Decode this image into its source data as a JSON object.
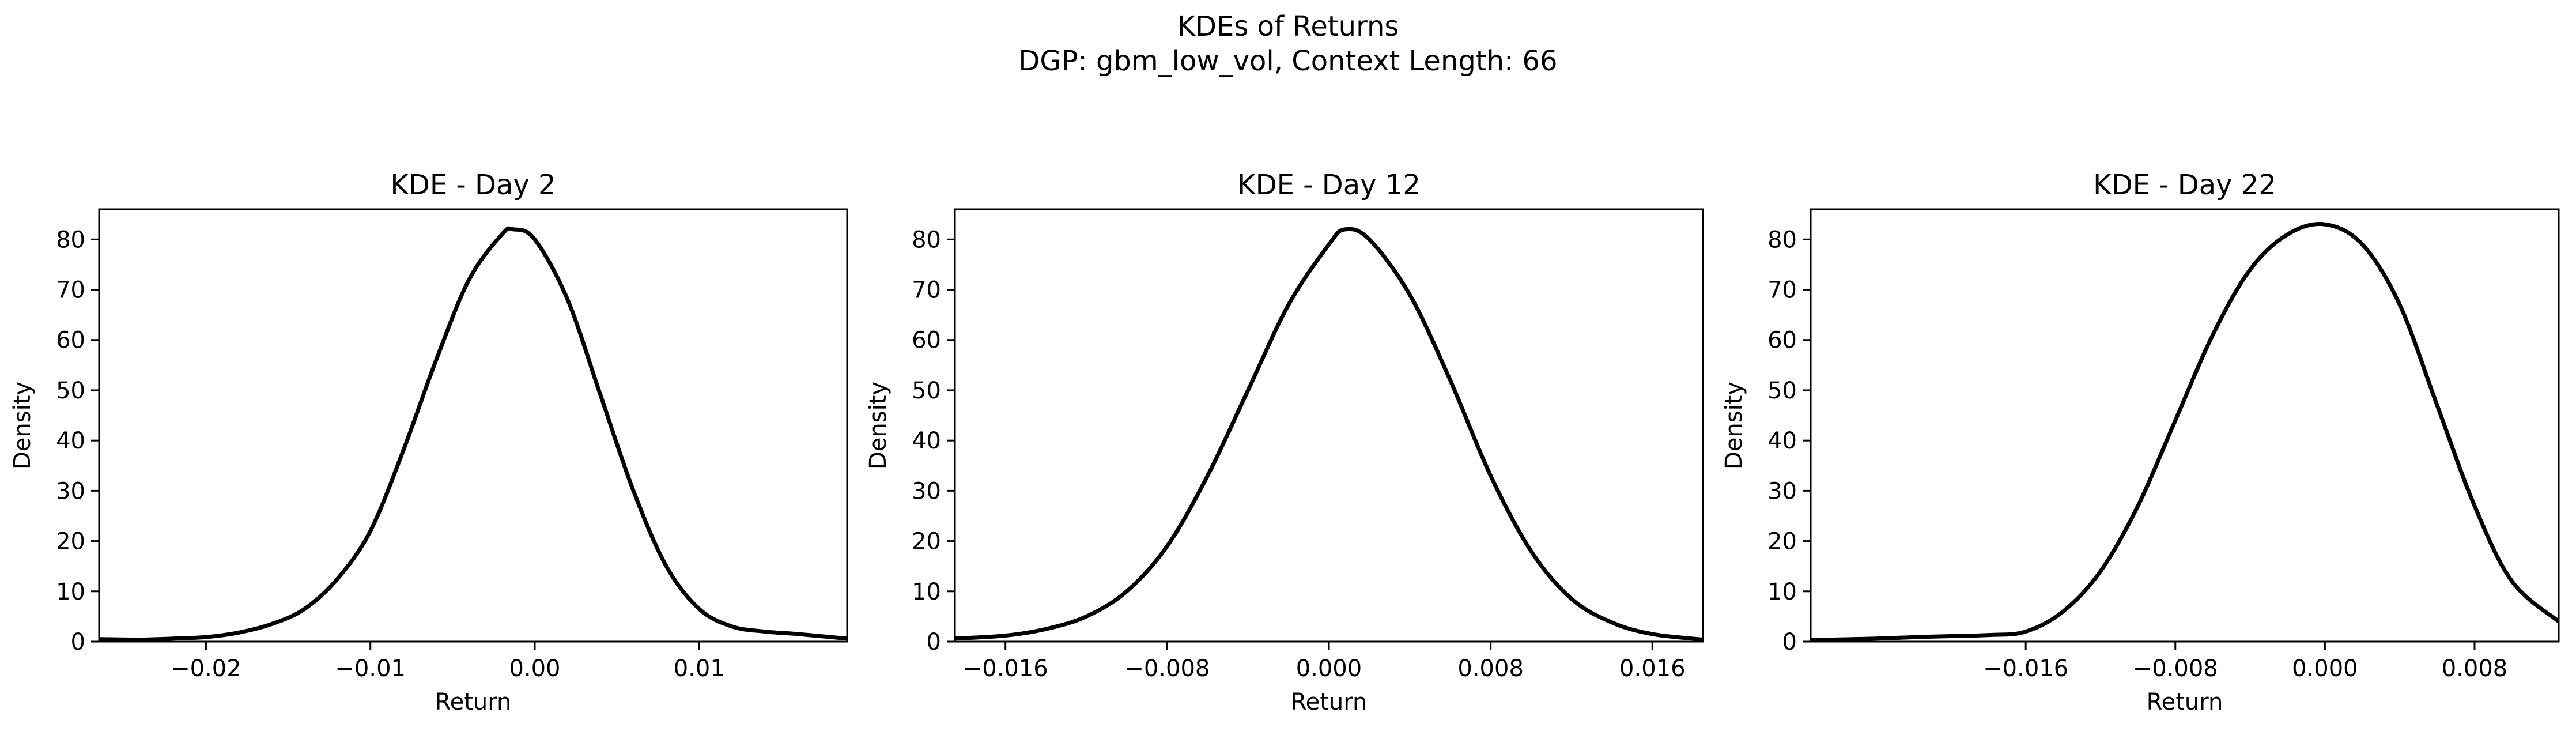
{
  "figure": {
    "title_line1": "KDEs of Returns",
    "title_line2": "DGP: gbm_low_vol, Context Length: 66"
  },
  "chart_data": [
    {
      "type": "line",
      "title": "KDE - Day 2",
      "xlabel": "Return",
      "ylabel": "Density",
      "xlim": [
        -0.0265,
        0.019
      ],
      "ylim": [
        0,
        86
      ],
      "xticks": [
        -0.02,
        -0.01,
        0.0,
        0.01
      ],
      "xtick_labels": [
        "−0.02",
        "−0.01",
        "0.00",
        "0.01"
      ],
      "yticks": [
        0,
        10,
        20,
        30,
        40,
        50,
        60,
        70,
        80
      ],
      "ytick_labels": [
        "0",
        "10",
        "20",
        "30",
        "40",
        "50",
        "60",
        "70",
        "80"
      ],
      "grid": false,
      "line_color": "#000000",
      "series": [
        {
          "x": [
            -0.0265,
            -0.024,
            -0.022,
            -0.02,
            -0.018,
            -0.016,
            -0.014,
            -0.012,
            -0.01,
            -0.008,
            -0.006,
            -0.004,
            -0.002,
            -0.0013,
            0.0,
            0.002,
            0.004,
            0.006,
            0.008,
            0.01,
            0.012,
            0.014,
            0.016,
            0.019
          ],
          "y": [
            0.5,
            0.4,
            0.6,
            0.9,
            1.8,
            3.5,
            6.5,
            12.5,
            22,
            38,
            56,
            72,
            81,
            82,
            80,
            68,
            49,
            30,
            15,
            6.5,
            3,
            2,
            1.5,
            0.6
          ]
        }
      ]
    },
    {
      "type": "line",
      "title": "KDE - Day 12",
      "xlabel": "Return",
      "ylabel": "Density",
      "xlim": [
        -0.0185,
        0.0185
      ],
      "ylim": [
        0,
        86
      ],
      "xticks": [
        -0.016,
        -0.008,
        0.0,
        0.008,
        0.016
      ],
      "xtick_labels": [
        "−0.016",
        "−0.008",
        "0.000",
        "0.008",
        "0.016"
      ],
      "yticks": [
        0,
        10,
        20,
        30,
        40,
        50,
        60,
        70,
        80
      ],
      "ytick_labels": [
        "0",
        "10",
        "20",
        "30",
        "40",
        "50",
        "60",
        "70",
        "80"
      ],
      "grid": false,
      "line_color": "#000000",
      "series": [
        {
          "x": [
            -0.0185,
            -0.016,
            -0.014,
            -0.012,
            -0.01,
            -0.008,
            -0.006,
            -0.004,
            -0.002,
            0.0,
            0.0008,
            0.002,
            0.004,
            0.006,
            0.008,
            0.01,
            0.012,
            0.014,
            0.016,
            0.0185
          ],
          "y": [
            0.6,
            1.2,
            2.5,
            5,
            10,
            19,
            33,
            50,
            67,
            79,
            82,
            80,
            69,
            52,
            33,
            18,
            8.5,
            3.8,
            1.5,
            0.4
          ]
        }
      ]
    },
    {
      "type": "line",
      "title": "KDE - Day 22",
      "xlabel": "Return",
      "ylabel": "Density",
      "xlim": [
        -0.0275,
        0.0125
      ],
      "ylim": [
        0,
        86
      ],
      "xticks": [
        -0.016,
        -0.008,
        0.0,
        0.008
      ],
      "xtick_labels": [
        "−0.016",
        "−0.008",
        "0.000",
        "0.008"
      ],
      "yticks": [
        0,
        10,
        20,
        30,
        40,
        50,
        60,
        70,
        80
      ],
      "ytick_labels": [
        "0",
        "10",
        "20",
        "30",
        "40",
        "50",
        "60",
        "70",
        "80"
      ],
      "grid": false,
      "line_color": "#000000",
      "series": [
        {
          "x": [
            -0.0275,
            -0.024,
            -0.021,
            -0.018,
            -0.016,
            -0.014,
            -0.012,
            -0.01,
            -0.008,
            -0.006,
            -0.004,
            -0.002,
            0.0,
            0.002,
            0.004,
            0.006,
            0.008,
            0.01,
            0.0125
          ],
          "y": [
            0.3,
            0.6,
            1,
            1.3,
            2,
            6,
            14,
            27,
            44,
            61,
            74,
            81,
            83,
            79,
            67,
            47,
            27,
            12,
            4
          ]
        }
      ]
    }
  ]
}
